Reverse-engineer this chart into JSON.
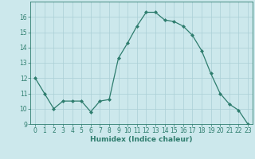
{
  "x": [
    0,
    1,
    2,
    3,
    4,
    5,
    6,
    7,
    8,
    9,
    10,
    11,
    12,
    13,
    14,
    15,
    16,
    17,
    18,
    19,
    20,
    21,
    22,
    23
  ],
  "y": [
    12,
    11,
    10,
    10.5,
    10.5,
    10.5,
    9.8,
    10.5,
    10.6,
    13.3,
    14.3,
    15.4,
    16.3,
    16.3,
    15.8,
    15.7,
    15.4,
    14.8,
    13.8,
    12.3,
    11.0,
    10.3,
    9.9,
    9.0
  ],
  "xlabel": "Humidex (Indice chaleur)",
  "xlim": [
    -0.5,
    23.5
  ],
  "ylim": [
    9,
    17
  ],
  "yticks": [
    9,
    10,
    11,
    12,
    13,
    14,
    15,
    16
  ],
  "xticks": [
    0,
    1,
    2,
    3,
    4,
    5,
    6,
    7,
    8,
    9,
    10,
    11,
    12,
    13,
    14,
    15,
    16,
    17,
    18,
    19,
    20,
    21,
    22,
    23
  ],
  "line_color": "#2e7d6e",
  "marker": "D",
  "marker_size": 2.0,
  "bg_color": "#cce8ec",
  "grid_color": "#aacfd6",
  "label_fontsize": 6.5,
  "tick_fontsize": 5.5,
  "tick_color": "#2e7d6e",
  "spine_color": "#2e7d6e"
}
